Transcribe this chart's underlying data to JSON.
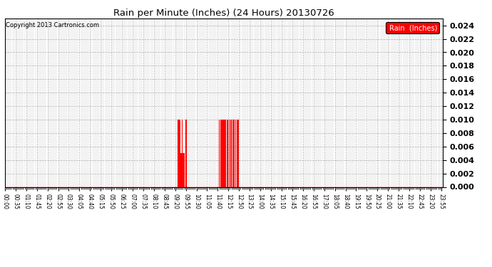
{
  "title": "Rain per Minute (Inches) (24 Hours) 20130726",
  "copyright_text": "Copyright 2013 Cartronics.com",
  "legend_label": "Rain  (Inches)",
  "legend_color": "#ff0000",
  "background_color": "#ffffff",
  "plot_bg_color": "#ffffff",
  "grid_color": "#b0b0b0",
  "bar_color": "#ff0000",
  "line_color": "#ff0000",
  "ylim": [
    0.0,
    0.025
  ],
  "yticks": [
    0.0,
    0.002,
    0.004,
    0.006,
    0.008,
    0.01,
    0.012,
    0.014,
    0.016,
    0.018,
    0.02,
    0.022,
    0.024
  ],
  "tick_interval_minutes": 35,
  "total_minutes": 1440,
  "rain_events": [
    {
      "minute": 569,
      "value": 0.01
    },
    {
      "minute": 570,
      "value": 0.01
    },
    {
      "minute": 572,
      "value": 0.01
    },
    {
      "minute": 574,
      "value": 0.01
    },
    {
      "minute": 576,
      "value": 0.01
    },
    {
      "minute": 578,
      "value": 0.005
    },
    {
      "minute": 580,
      "value": 0.005
    },
    {
      "minute": 582,
      "value": 0.01
    },
    {
      "minute": 583,
      "value": 0.01
    },
    {
      "minute": 584,
      "value": 0.005
    },
    {
      "minute": 585,
      "value": 0.005
    },
    {
      "minute": 588,
      "value": 0.005
    },
    {
      "minute": 590,
      "value": 0.005
    },
    {
      "minute": 594,
      "value": 0.01
    },
    {
      "minute": 598,
      "value": 0.01
    },
    {
      "minute": 705,
      "value": 0.01
    },
    {
      "minute": 710,
      "value": 0.01
    },
    {
      "minute": 712,
      "value": 0.01
    },
    {
      "minute": 715,
      "value": 0.01
    },
    {
      "minute": 717,
      "value": 0.01
    },
    {
      "minute": 719,
      "value": 0.01
    },
    {
      "minute": 721,
      "value": 0.01
    },
    {
      "minute": 723,
      "value": 0.01
    },
    {
      "minute": 725,
      "value": 0.01
    },
    {
      "minute": 727,
      "value": 0.01
    },
    {
      "minute": 730,
      "value": 0.01
    },
    {
      "minute": 732,
      "value": 0.01
    },
    {
      "minute": 734,
      "value": 0.01
    },
    {
      "minute": 738,
      "value": 0.01
    },
    {
      "minute": 742,
      "value": 0.01
    },
    {
      "minute": 745,
      "value": 0.01
    },
    {
      "minute": 750,
      "value": 0.01
    },
    {
      "minute": 752,
      "value": 0.01
    },
    {
      "minute": 755,
      "value": 0.01
    },
    {
      "minute": 758,
      "value": 0.01
    },
    {
      "minute": 760,
      "value": 0.01
    },
    {
      "minute": 763,
      "value": 0.01
    },
    {
      "minute": 766,
      "value": 0.01
    },
    {
      "minute": 768,
      "value": 0.01
    }
  ]
}
